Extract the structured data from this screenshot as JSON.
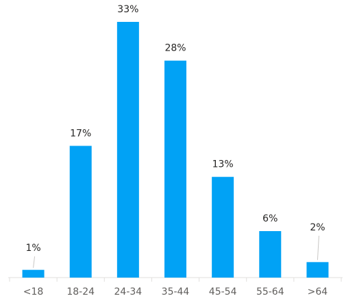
{
  "chart_data": {
    "type": "bar",
    "categories": [
      "<18",
      "18-24",
      "24-34",
      "35-44",
      "45-54",
      "55-64",
      ">64"
    ],
    "values": [
      1,
      17,
      33,
      28,
      13,
      6,
      2
    ],
    "value_labels": [
      "1%",
      "17%",
      "33%",
      "28%",
      "13%",
      "6%",
      "2%"
    ],
    "color": "#01a2f5"
  }
}
